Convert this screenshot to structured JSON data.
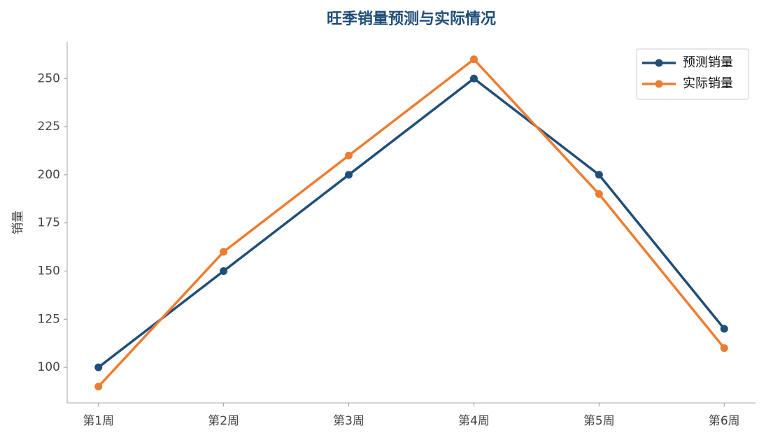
{
  "chart_data": {
    "type": "line",
    "title": "旺季销量预测与实际情况",
    "y_label": "销量",
    "categories": [
      "第1周",
      "第2周",
      "第3周",
      "第4周",
      "第5周",
      "第6周"
    ],
    "series": [
      {
        "name": "预测销量",
        "color": "#1f4e79",
        "values": [
          100,
          150,
          200,
          250,
          200,
          120
        ]
      },
      {
        "name": "实际销量",
        "color": "#ed7d31",
        "values": [
          90,
          160,
          210,
          260,
          190,
          110
        ]
      }
    ],
    "ylim": [
      81.5,
      269
    ],
    "yticks": [
      100,
      125,
      150,
      175,
      200,
      225,
      250
    ],
    "grid": false,
    "legend": "upper right"
  }
}
